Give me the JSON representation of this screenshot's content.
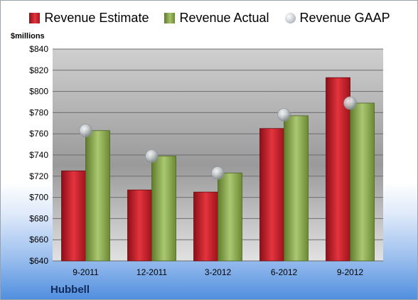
{
  "chart_data": {
    "type": "bar",
    "ylabel": "$millions",
    "categories": [
      "9-2011",
      "12-2011",
      "3-2012",
      "6-2012",
      "9-2012"
    ],
    "ylim": [
      640,
      840
    ],
    "yticks": [
      640,
      660,
      680,
      700,
      720,
      740,
      760,
      780,
      800,
      820,
      840
    ],
    "ytick_labels": [
      "$640",
      "$660",
      "$680",
      "$700",
      "$720",
      "$740",
      "$760",
      "$780",
      "$800",
      "$820",
      "$840"
    ],
    "series": [
      {
        "name": "Revenue Estimate",
        "kind": "bar",
        "color": "#c8202a",
        "values": [
          725,
          707,
          705,
          765,
          813
        ]
      },
      {
        "name": "Revenue Actual",
        "kind": "bar",
        "color": "#8fae54",
        "values": [
          763,
          739,
          723,
          777,
          789
        ]
      },
      {
        "name": "Revenue GAAP",
        "kind": "marker",
        "color": "#b9bec5",
        "values": [
          763,
          739,
          723,
          778,
          789
        ]
      }
    ],
    "grid": true,
    "legend_position": "top"
  },
  "footer": {
    "company": "Hubbell"
  }
}
